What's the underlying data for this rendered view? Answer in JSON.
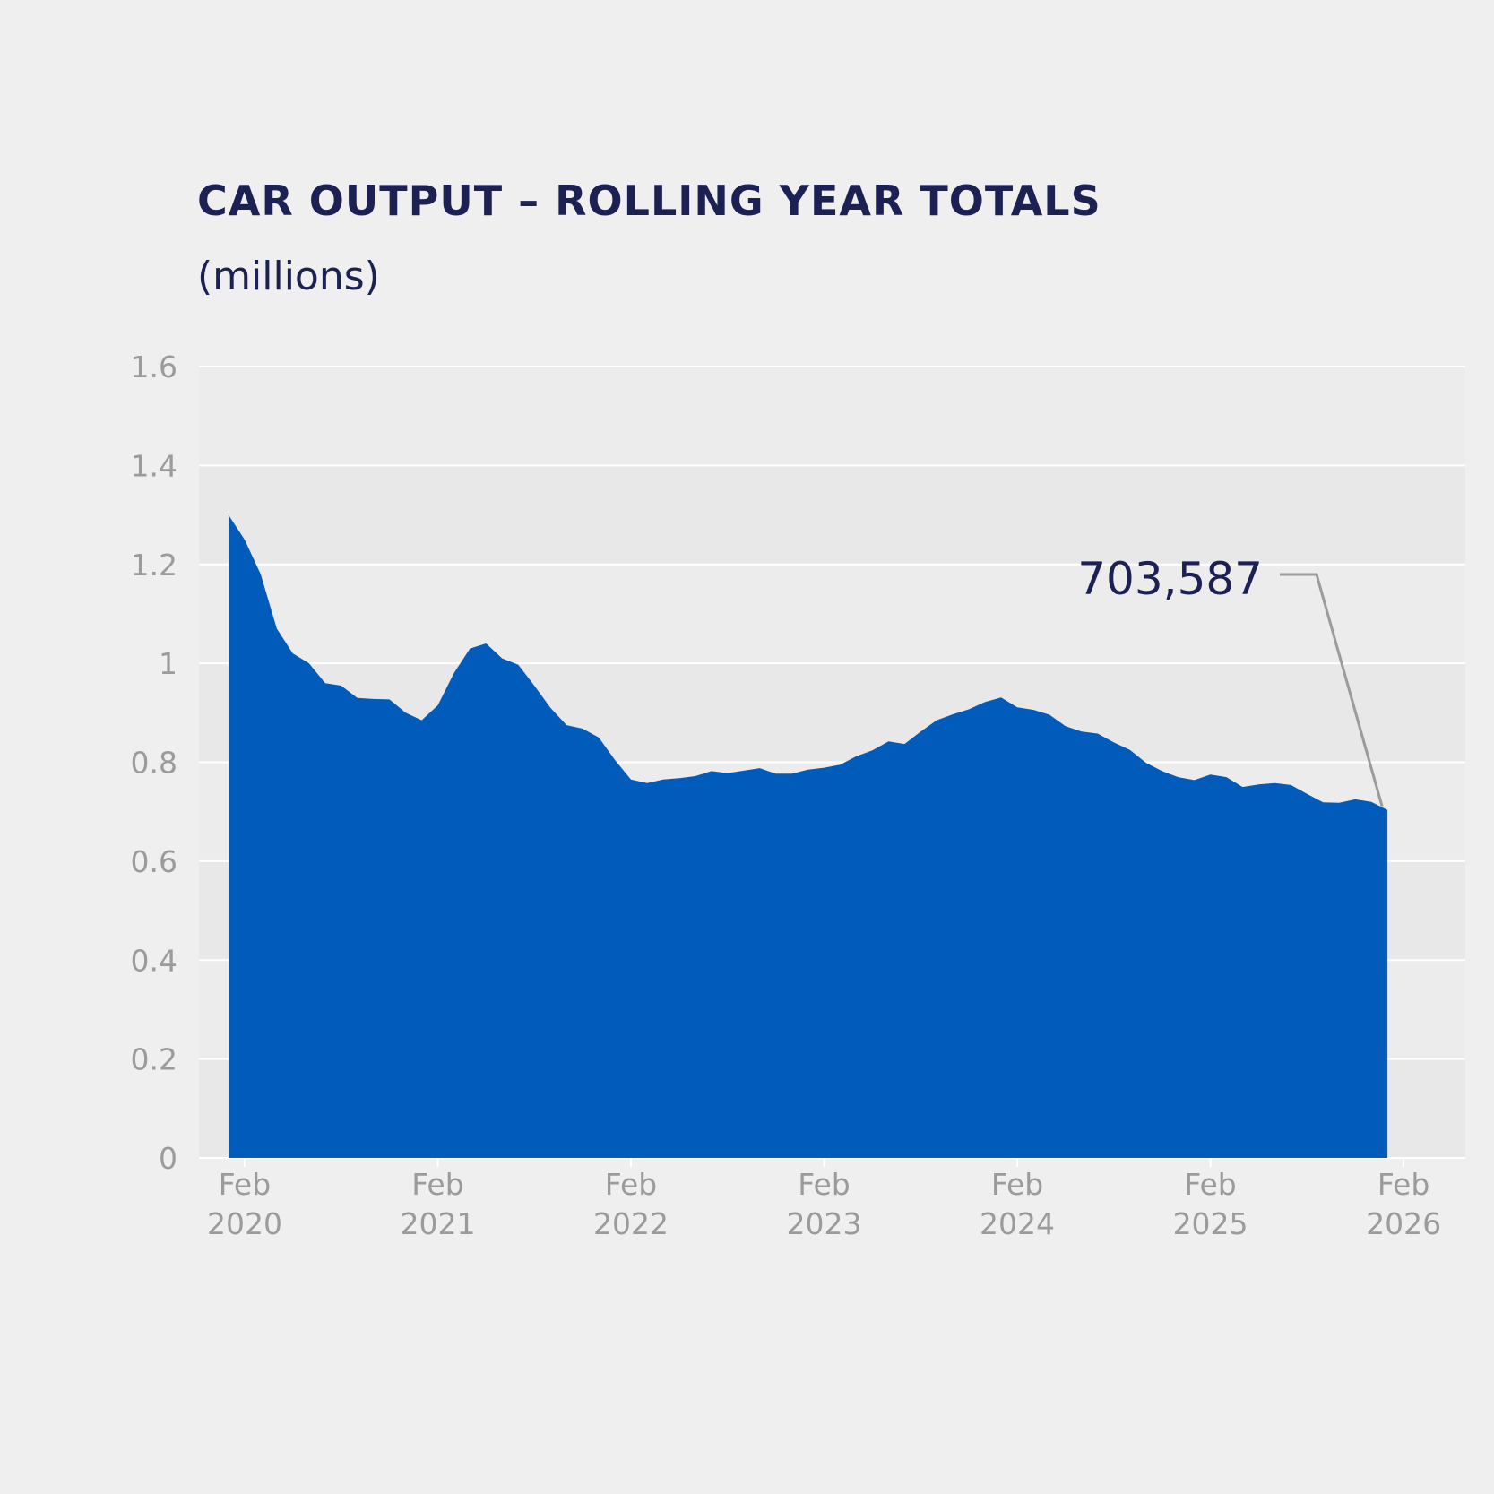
{
  "chart_data": {
    "type": "area",
    "title": "CAR OUTPUT – ROLLING YEAR TOTALS",
    "subtitle": "(millions)",
    "ylim": [
      0,
      1.6
    ],
    "y_ticks": [
      {
        "value": 0,
        "label": "0"
      },
      {
        "value": 0.2,
        "label": "0.2"
      },
      {
        "value": 0.4,
        "label": "0.4"
      },
      {
        "value": 0.6,
        "label": "0.6"
      },
      {
        "value": 0.8,
        "label": "0.8"
      },
      {
        "value": 1.0,
        "label": "1"
      },
      {
        "value": 1.2,
        "label": "1.2"
      },
      {
        "value": 1.4,
        "label": "1.4"
      },
      {
        "value": 1.6,
        "label": "1.6"
      }
    ],
    "x_ticks": [
      {
        "month_index": 1,
        "line1": "Feb",
        "line2": "2020"
      },
      {
        "month_index": 13,
        "line1": "Feb",
        "line2": "2021"
      },
      {
        "month_index": 25,
        "line1": "Feb",
        "line2": "2022"
      },
      {
        "month_index": 37,
        "line1": "Feb",
        "line2": "2023"
      },
      {
        "month_index": 49,
        "line1": "Feb",
        "line2": "2024"
      },
      {
        "month_index": 61,
        "line1": "Feb",
        "line2": "2025"
      },
      {
        "month_index": 73,
        "line1": "Feb",
        "line2": "2026"
      }
    ],
    "x_start": "Jan 2020",
    "values": [
      1.3,
      1.25,
      1.18,
      1.07,
      1.02,
      1.0,
      0.96,
      0.955,
      0.93,
      0.928,
      0.927,
      0.9,
      0.885,
      0.915,
      0.98,
      1.03,
      1.04,
      1.01,
      0.997,
      0.955,
      0.91,
      0.875,
      0.868,
      0.85,
      0.805,
      0.765,
      0.758,
      0.765,
      0.768,
      0.772,
      0.782,
      0.778,
      0.783,
      0.788,
      0.777,
      0.777,
      0.785,
      0.789,
      0.795,
      0.812,
      0.824,
      0.842,
      0.837,
      0.862,
      0.885,
      0.897,
      0.907,
      0.922,
      0.931,
      0.911,
      0.906,
      0.896,
      0.873,
      0.862,
      0.858,
      0.84,
      0.825,
      0.799,
      0.782,
      0.77,
      0.764,
      0.775,
      0.77,
      0.75,
      0.755,
      0.758,
      0.754,
      0.736,
      0.719,
      0.718,
      0.725,
      0.72,
      0.7036
    ],
    "color": "#005bbb",
    "grid": true,
    "annotation": {
      "label": "703,587",
      "value": 0.703587
    }
  }
}
